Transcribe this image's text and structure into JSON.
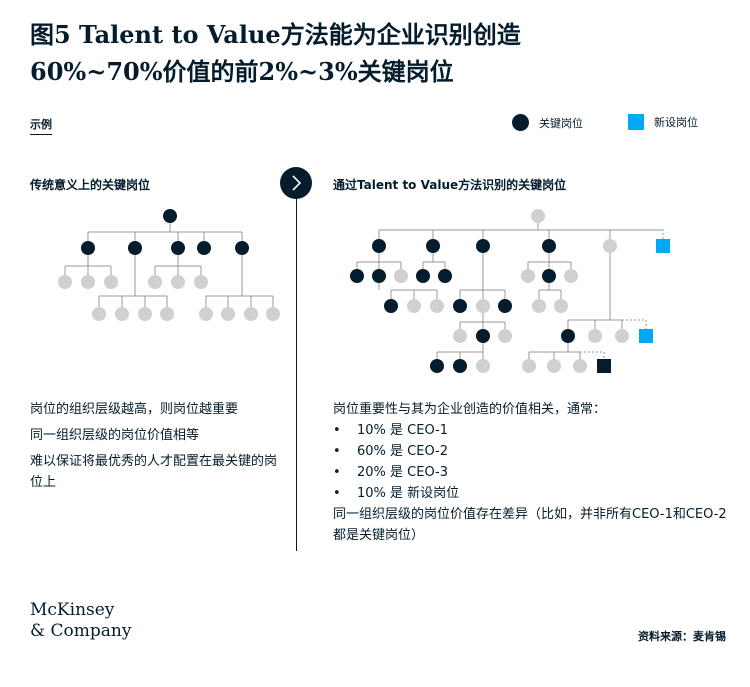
{
  "title": {
    "line1": "图5 Talent to Value方法能为企业识别创造",
    "line2": "60%~70%价值的前2%~3%关键岗位"
  },
  "example_label": "示例",
  "legend": {
    "key_position": "关键岗位",
    "new_position": "新设岗位",
    "colors": {
      "key": "#051c2c",
      "new": "#00a9f4",
      "other": "#d0d0d0"
    }
  },
  "left": {
    "subtitle": "传统意义上的关键岗位",
    "notes": [
      "岗位的组织层级越高，则岗位越重要",
      "同一组织层级的岗位价值相等",
      "难以保证将最优秀的人才配置在最关键的岗位上"
    ]
  },
  "right": {
    "subtitle": "通过Talent to Value方法识别的关键岗位",
    "intro": "岗位重要性与其为企业创造的价值相关，通常：",
    "bullets": [
      "10% 是 CEO-1",
      "60% 是 CEO-2",
      "20% 是 CEO-3",
      "10% 是 新设岗位"
    ],
    "outro": "同一组织层级的岗位价值存在差异（比如，并非所有CEO-1和CEO-2都是关键岗位）"
  },
  "icons": {
    "divider_arrow": "chevron-right-icon",
    "legend_key": "filled-circle-icon",
    "legend_new": "filled-square-icon"
  },
  "logo": {
    "line1": "McKinsey",
    "line2": "& Company"
  },
  "source": "资料来源：麦肯锡"
}
